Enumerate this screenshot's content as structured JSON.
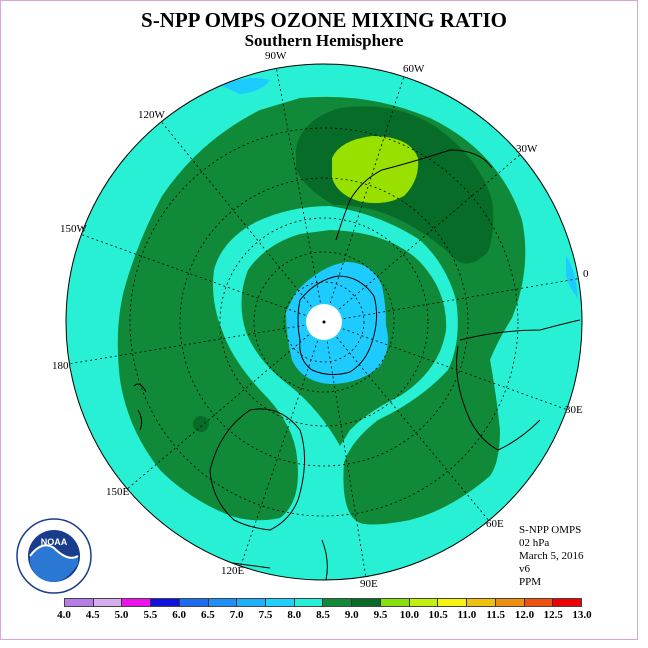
{
  "title": "S-NPP OMPS OZONE MIXING RATIO",
  "subtitle": "Southern Hemisphere",
  "longitude_labels": {
    "l90w": "90W",
    "l60w": "60W",
    "l30w": "30W",
    "l0": "0",
    "l30e": "30E",
    "l60e": "60E",
    "l90e": "90E",
    "l120e": "120E",
    "l150e": "150E",
    "l180": "180",
    "l150w": "150W",
    "l120w": "120W"
  },
  "info": {
    "instrument": "S-NPP OMPS",
    "level": "02 hPa",
    "date": "March 5, 2016",
    "version": "v6",
    "units": "PPM"
  },
  "logo": {
    "text": "NOAA",
    "ring_text": "NATIONAL OCEANIC AND ATMOSPHERIC ADMINISTRATION U.S. DEPARTMENT OF COMMERCE"
  },
  "legend": {
    "ticks": [
      "4.0",
      "4.5",
      "5.0",
      "5.5",
      "6.0",
      "6.5",
      "7.0",
      "7.5",
      "8.0",
      "8.5",
      "9.0",
      "9.5",
      "10.0",
      "10.5",
      "11.0",
      "11.5",
      "12.0",
      "12.5",
      "13.0"
    ],
    "colors": [
      "#b57de8",
      "#d6aef0",
      "#ee10ee",
      "#1010e0",
      "#1a6cf0",
      "#1c90f8",
      "#1eb0ff",
      "#20d0ff",
      "#24f0d8",
      "#108a38",
      "#066c28",
      "#88e010",
      "#c4f010",
      "#f4f410",
      "#f0c010",
      "#f09010",
      "#f05010",
      "#f00000",
      "#7a4a28"
    ],
    "contour_colors": {
      "background": "#28f0d4",
      "light_blue": "#1ecbff",
      "green": "#108a38",
      "dark_green": "#066c28",
      "lime": "#98e000"
    }
  }
}
